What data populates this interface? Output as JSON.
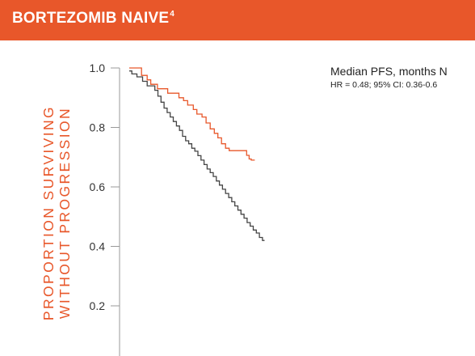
{
  "banner": {
    "title": "BORTEZOMIB NAIVE",
    "sup": "4",
    "color": "#e8572a"
  },
  "y_label": {
    "line1": "PROPORTION SURVIVING",
    "line2": "WITHOUT PROGRESSION"
  },
  "annotations": {
    "median": "Median PFS, months N",
    "hr": "HR = 0.48; 95% CI: 0.36-0.6"
  },
  "chart_data": {
    "type": "line",
    "title": "",
    "xlabel": "",
    "ylabel": "PROPORTION SURVIVING WITHOUT PROGRESSION",
    "ylim": [
      0,
      1.0
    ],
    "xlim": [
      0,
      35
    ],
    "y_ticks": [
      1.0,
      0.8,
      0.6,
      0.4,
      0.2
    ],
    "y_tick_labels": [
      "1.0",
      "0.8",
      "0.6",
      "0.4",
      "0.2"
    ],
    "grid": false,
    "legend": "none",
    "series": [
      {
        "color": "#e8572a",
        "step": true,
        "points": [
          [
            0,
            1.0
          ],
          [
            2.4,
            1.0
          ],
          [
            2.4,
            0.975
          ],
          [
            3.5,
            0.975
          ],
          [
            3.5,
            0.96
          ],
          [
            4.2,
            0.96
          ],
          [
            4.2,
            0.945
          ],
          [
            5.5,
            0.945
          ],
          [
            5.5,
            0.93
          ],
          [
            7.5,
            0.93
          ],
          [
            7.5,
            0.915
          ],
          [
            9.7,
            0.915
          ],
          [
            9.7,
            0.9
          ],
          [
            10.6,
            0.9
          ],
          [
            10.6,
            0.89
          ],
          [
            11.4,
            0.89
          ],
          [
            11.4,
            0.875
          ],
          [
            12.5,
            0.875
          ],
          [
            12.5,
            0.86
          ],
          [
            13.2,
            0.86
          ],
          [
            13.2,
            0.845
          ],
          [
            14.2,
            0.845
          ],
          [
            14.2,
            0.835
          ],
          [
            15.0,
            0.835
          ],
          [
            15.0,
            0.815
          ],
          [
            15.8,
            0.815
          ],
          [
            15.8,
            0.795
          ],
          [
            16.6,
            0.795
          ],
          [
            16.6,
            0.78
          ],
          [
            17.3,
            0.78
          ],
          [
            17.3,
            0.765
          ],
          [
            18.0,
            0.765
          ],
          [
            18.0,
            0.745
          ],
          [
            18.8,
            0.745
          ],
          [
            18.8,
            0.73
          ],
          [
            19.5,
            0.73
          ],
          [
            19.5,
            0.722
          ],
          [
            22.9,
            0.722
          ],
          [
            22.9,
            0.706
          ],
          [
            23.4,
            0.706
          ],
          [
            23.4,
            0.694
          ],
          [
            23.8,
            0.694
          ],
          [
            23.8,
            0.69
          ],
          [
            24.5,
            0.69
          ]
        ]
      },
      {
        "color": "#444444",
        "step": true,
        "points": [
          [
            0,
            0.99
          ],
          [
            0.5,
            0.99
          ],
          [
            0.5,
            0.98
          ],
          [
            1.5,
            0.98
          ],
          [
            1.5,
            0.97
          ],
          [
            2.6,
            0.97
          ],
          [
            2.6,
            0.955
          ],
          [
            3.5,
            0.955
          ],
          [
            3.5,
            0.94
          ],
          [
            5.0,
            0.94
          ],
          [
            5.0,
            0.925
          ],
          [
            5.6,
            0.925
          ],
          [
            5.6,
            0.905
          ],
          [
            6.2,
            0.905
          ],
          [
            6.2,
            0.885
          ],
          [
            6.8,
            0.885
          ],
          [
            6.8,
            0.865
          ],
          [
            7.4,
            0.865
          ],
          [
            7.4,
            0.85
          ],
          [
            8.0,
            0.85
          ],
          [
            8.0,
            0.835
          ],
          [
            8.6,
            0.835
          ],
          [
            8.6,
            0.82
          ],
          [
            9.2,
            0.82
          ],
          [
            9.2,
            0.805
          ],
          [
            9.8,
            0.805
          ],
          [
            9.8,
            0.79
          ],
          [
            10.4,
            0.79
          ],
          [
            10.4,
            0.77
          ],
          [
            11.0,
            0.77
          ],
          [
            11.0,
            0.755
          ],
          [
            11.6,
            0.755
          ],
          [
            11.6,
            0.745
          ],
          [
            12.2,
            0.745
          ],
          [
            12.2,
            0.73
          ],
          [
            12.8,
            0.73
          ],
          [
            12.8,
            0.72
          ],
          [
            13.4,
            0.72
          ],
          [
            13.4,
            0.705
          ],
          [
            14.0,
            0.705
          ],
          [
            14.0,
            0.69
          ],
          [
            14.6,
            0.69
          ],
          [
            14.6,
            0.675
          ],
          [
            15.2,
            0.675
          ],
          [
            15.2,
            0.66
          ],
          [
            15.8,
            0.66
          ],
          [
            15.8,
            0.648
          ],
          [
            16.4,
            0.648
          ],
          [
            16.4,
            0.635
          ],
          [
            17.0,
            0.635
          ],
          [
            17.0,
            0.62
          ],
          [
            17.6,
            0.62
          ],
          [
            17.6,
            0.606
          ],
          [
            18.2,
            0.606
          ],
          [
            18.2,
            0.592
          ],
          [
            18.8,
            0.592
          ],
          [
            18.8,
            0.578
          ],
          [
            19.4,
            0.578
          ],
          [
            19.4,
            0.564
          ],
          [
            20.0,
            0.564
          ],
          [
            20.0,
            0.55
          ],
          [
            20.6,
            0.55
          ],
          [
            20.6,
            0.536
          ],
          [
            21.2,
            0.536
          ],
          [
            21.2,
            0.522
          ],
          [
            21.8,
            0.522
          ],
          [
            21.8,
            0.508
          ],
          [
            22.4,
            0.508
          ],
          [
            22.4,
            0.495
          ],
          [
            23.0,
            0.495
          ],
          [
            23.0,
            0.48
          ],
          [
            23.6,
            0.48
          ],
          [
            23.6,
            0.468
          ],
          [
            24.2,
            0.468
          ],
          [
            24.2,
            0.455
          ],
          [
            24.8,
            0.455
          ],
          [
            24.8,
            0.445
          ],
          [
            25.4,
            0.445
          ],
          [
            25.4,
            0.43
          ],
          [
            26.0,
            0.43
          ],
          [
            26.0,
            0.42
          ],
          [
            26.4,
            0.42
          ]
        ]
      }
    ]
  }
}
